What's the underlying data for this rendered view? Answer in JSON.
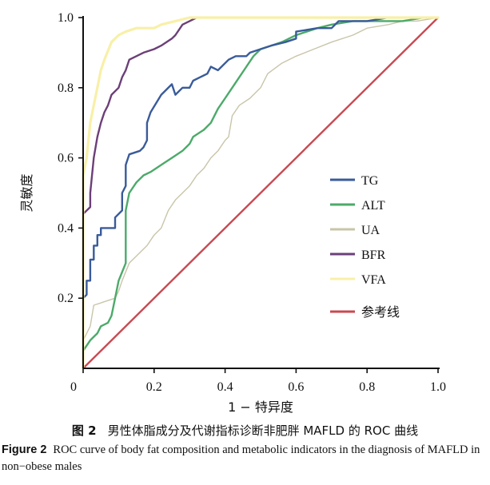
{
  "chart_data": {
    "type": "line",
    "title": "",
    "xlabel": "1 − 特异度",
    "ylabel": "灵敏度",
    "xlim": [
      0,
      1
    ],
    "ylim": [
      0,
      1
    ],
    "x_ticks": [
      "0",
      "0.2",
      "0.4",
      "0.6",
      "0.8",
      "1.0"
    ],
    "y_ticks": [
      "0.2",
      "0.4",
      "0.6",
      "0.8",
      "1.0"
    ],
    "grid": false,
    "legend_position": "right",
    "series": [
      {
        "name": "TG",
        "color": "#3a5b9a",
        "points": [
          [
            0,
            0
          ],
          [
            0,
            0.2
          ],
          [
            0.01,
            0.21
          ],
          [
            0.01,
            0.25
          ],
          [
            0.02,
            0.25
          ],
          [
            0.02,
            0.31
          ],
          [
            0.03,
            0.31
          ],
          [
            0.03,
            0.35
          ],
          [
            0.04,
            0.35
          ],
          [
            0.04,
            0.38
          ],
          [
            0.05,
            0.38
          ],
          [
            0.05,
            0.4
          ],
          [
            0.09,
            0.4
          ],
          [
            0.09,
            0.43
          ],
          [
            0.11,
            0.45
          ],
          [
            0.11,
            0.5
          ],
          [
            0.12,
            0.52
          ],
          [
            0.12,
            0.58
          ],
          [
            0.13,
            0.61
          ],
          [
            0.16,
            0.62
          ],
          [
            0.17,
            0.63
          ],
          [
            0.18,
            0.65
          ],
          [
            0.18,
            0.7
          ],
          [
            0.19,
            0.73
          ],
          [
            0.22,
            0.78
          ],
          [
            0.25,
            0.81
          ],
          [
            0.26,
            0.78
          ],
          [
            0.28,
            0.8
          ],
          [
            0.3,
            0.8
          ],
          [
            0.31,
            0.82
          ],
          [
            0.33,
            0.83
          ],
          [
            0.35,
            0.84
          ],
          [
            0.36,
            0.86
          ],
          [
            0.38,
            0.85
          ],
          [
            0.41,
            0.88
          ],
          [
            0.43,
            0.89
          ],
          [
            0.46,
            0.89
          ],
          [
            0.47,
            0.9
          ],
          [
            0.5,
            0.91
          ],
          [
            0.53,
            0.92
          ],
          [
            0.57,
            0.93
          ],
          [
            0.6,
            0.94
          ],
          [
            0.6,
            0.96
          ],
          [
            0.66,
            0.97
          ],
          [
            0.7,
            0.97
          ],
          [
            0.72,
            0.99
          ],
          [
            0.76,
            0.99
          ],
          [
            0.8,
            0.99
          ],
          [
            0.86,
            1
          ],
          [
            1,
            1
          ]
        ]
      },
      {
        "name": "ALT",
        "color": "#4caa6a",
        "points": [
          [
            0,
            0
          ],
          [
            0,
            0.05
          ],
          [
            0.02,
            0.08
          ],
          [
            0.03,
            0.09
          ],
          [
            0.04,
            0.1
          ],
          [
            0.05,
            0.12
          ],
          [
            0.07,
            0.13
          ],
          [
            0.08,
            0.15
          ],
          [
            0.09,
            0.2
          ],
          [
            0.1,
            0.25
          ],
          [
            0.12,
            0.3
          ],
          [
            0.12,
            0.45
          ],
          [
            0.13,
            0.5
          ],
          [
            0.15,
            0.53
          ],
          [
            0.17,
            0.55
          ],
          [
            0.19,
            0.56
          ],
          [
            0.22,
            0.58
          ],
          [
            0.25,
            0.6
          ],
          [
            0.28,
            0.62
          ],
          [
            0.3,
            0.64
          ],
          [
            0.31,
            0.66
          ],
          [
            0.34,
            0.68
          ],
          [
            0.36,
            0.7
          ],
          [
            0.38,
            0.74
          ],
          [
            0.4,
            0.77
          ],
          [
            0.42,
            0.8
          ],
          [
            0.44,
            0.83
          ],
          [
            0.46,
            0.86
          ],
          [
            0.48,
            0.89
          ],
          [
            0.5,
            0.91
          ],
          [
            0.53,
            0.92
          ],
          [
            0.56,
            0.93
          ],
          [
            0.58,
            0.94
          ],
          [
            0.6,
            0.95
          ],
          [
            0.63,
            0.96
          ],
          [
            0.66,
            0.97
          ],
          [
            0.7,
            0.98
          ],
          [
            0.76,
            0.99
          ],
          [
            0.8,
            0.99
          ],
          [
            0.9,
            0.99
          ],
          [
            0.96,
            1
          ],
          [
            1,
            1
          ]
        ]
      },
      {
        "name": "UA",
        "color": "#c9c5a9",
        "points": [
          [
            0,
            0
          ],
          [
            0,
            0.08
          ],
          [
            0.02,
            0.12
          ],
          [
            0.03,
            0.18
          ],
          [
            0.06,
            0.19
          ],
          [
            0.09,
            0.2
          ],
          [
            0.1,
            0.22
          ],
          [
            0.11,
            0.25
          ],
          [
            0.13,
            0.3
          ],
          [
            0.16,
            0.33
          ],
          [
            0.18,
            0.35
          ],
          [
            0.2,
            0.38
          ],
          [
            0.22,
            0.4
          ],
          [
            0.24,
            0.45
          ],
          [
            0.26,
            0.48
          ],
          [
            0.28,
            0.5
          ],
          [
            0.3,
            0.52
          ],
          [
            0.32,
            0.55
          ],
          [
            0.34,
            0.57
          ],
          [
            0.36,
            0.6
          ],
          [
            0.38,
            0.62
          ],
          [
            0.4,
            0.65
          ],
          [
            0.41,
            0.66
          ],
          [
            0.42,
            0.72
          ],
          [
            0.44,
            0.75
          ],
          [
            0.47,
            0.77
          ],
          [
            0.5,
            0.8
          ],
          [
            0.52,
            0.84
          ],
          [
            0.56,
            0.87
          ],
          [
            0.6,
            0.89
          ],
          [
            0.65,
            0.91
          ],
          [
            0.7,
            0.93
          ],
          [
            0.76,
            0.95
          ],
          [
            0.8,
            0.97
          ],
          [
            0.86,
            0.98
          ],
          [
            0.9,
            0.99
          ],
          [
            0.94,
            0.99
          ],
          [
            1,
            1
          ]
        ]
      },
      {
        "name": "BFR",
        "color": "#6c3f78",
        "points": [
          [
            0,
            0
          ],
          [
            0,
            0.44
          ],
          [
            0.02,
            0.46
          ],
          [
            0.02,
            0.5
          ],
          [
            0.03,
            0.6
          ],
          [
            0.04,
            0.66
          ],
          [
            0.05,
            0.7
          ],
          [
            0.06,
            0.73
          ],
          [
            0.07,
            0.75
          ],
          [
            0.08,
            0.78
          ],
          [
            0.1,
            0.8
          ],
          [
            0.11,
            0.83
          ],
          [
            0.12,
            0.85
          ],
          [
            0.13,
            0.88
          ],
          [
            0.15,
            0.89
          ],
          [
            0.17,
            0.9
          ],
          [
            0.2,
            0.91
          ],
          [
            0.22,
            0.92
          ],
          [
            0.25,
            0.94
          ],
          [
            0.26,
            0.95
          ],
          [
            0.28,
            0.98
          ],
          [
            0.3,
            0.99
          ],
          [
            0.32,
            1
          ],
          [
            1,
            1
          ]
        ]
      },
      {
        "name": "VFA",
        "color": "#f8f0a8",
        "points": [
          [
            0,
            0
          ],
          [
            0,
            0.55
          ],
          [
            0.01,
            0.6
          ],
          [
            0.02,
            0.7
          ],
          [
            0.03,
            0.75
          ],
          [
            0.04,
            0.8
          ],
          [
            0.05,
            0.85
          ],
          [
            0.06,
            0.88
          ],
          [
            0.08,
            0.93
          ],
          [
            0.1,
            0.95
          ],
          [
            0.12,
            0.96
          ],
          [
            0.15,
            0.97
          ],
          [
            0.2,
            0.97
          ],
          [
            0.22,
            0.98
          ],
          [
            0.26,
            0.99
          ],
          [
            0.3,
            1
          ],
          [
            1,
            1
          ]
        ]
      },
      {
        "name": "参考线",
        "color": "#c84a52",
        "points": [
          [
            0,
            0
          ],
          [
            1,
            1
          ]
        ]
      }
    ]
  },
  "caption": {
    "cn_fig_no": "图 2",
    "cn_text": "男性体脂成分及代谢指标诊断非肥胖 MAFLD 的 ROC 曲线",
    "en_fig_no": "Figure 2",
    "en_text": "ROC curve of body fat composition and metabolic indicators in the diagnosis of MAFLD in non−obese males"
  }
}
